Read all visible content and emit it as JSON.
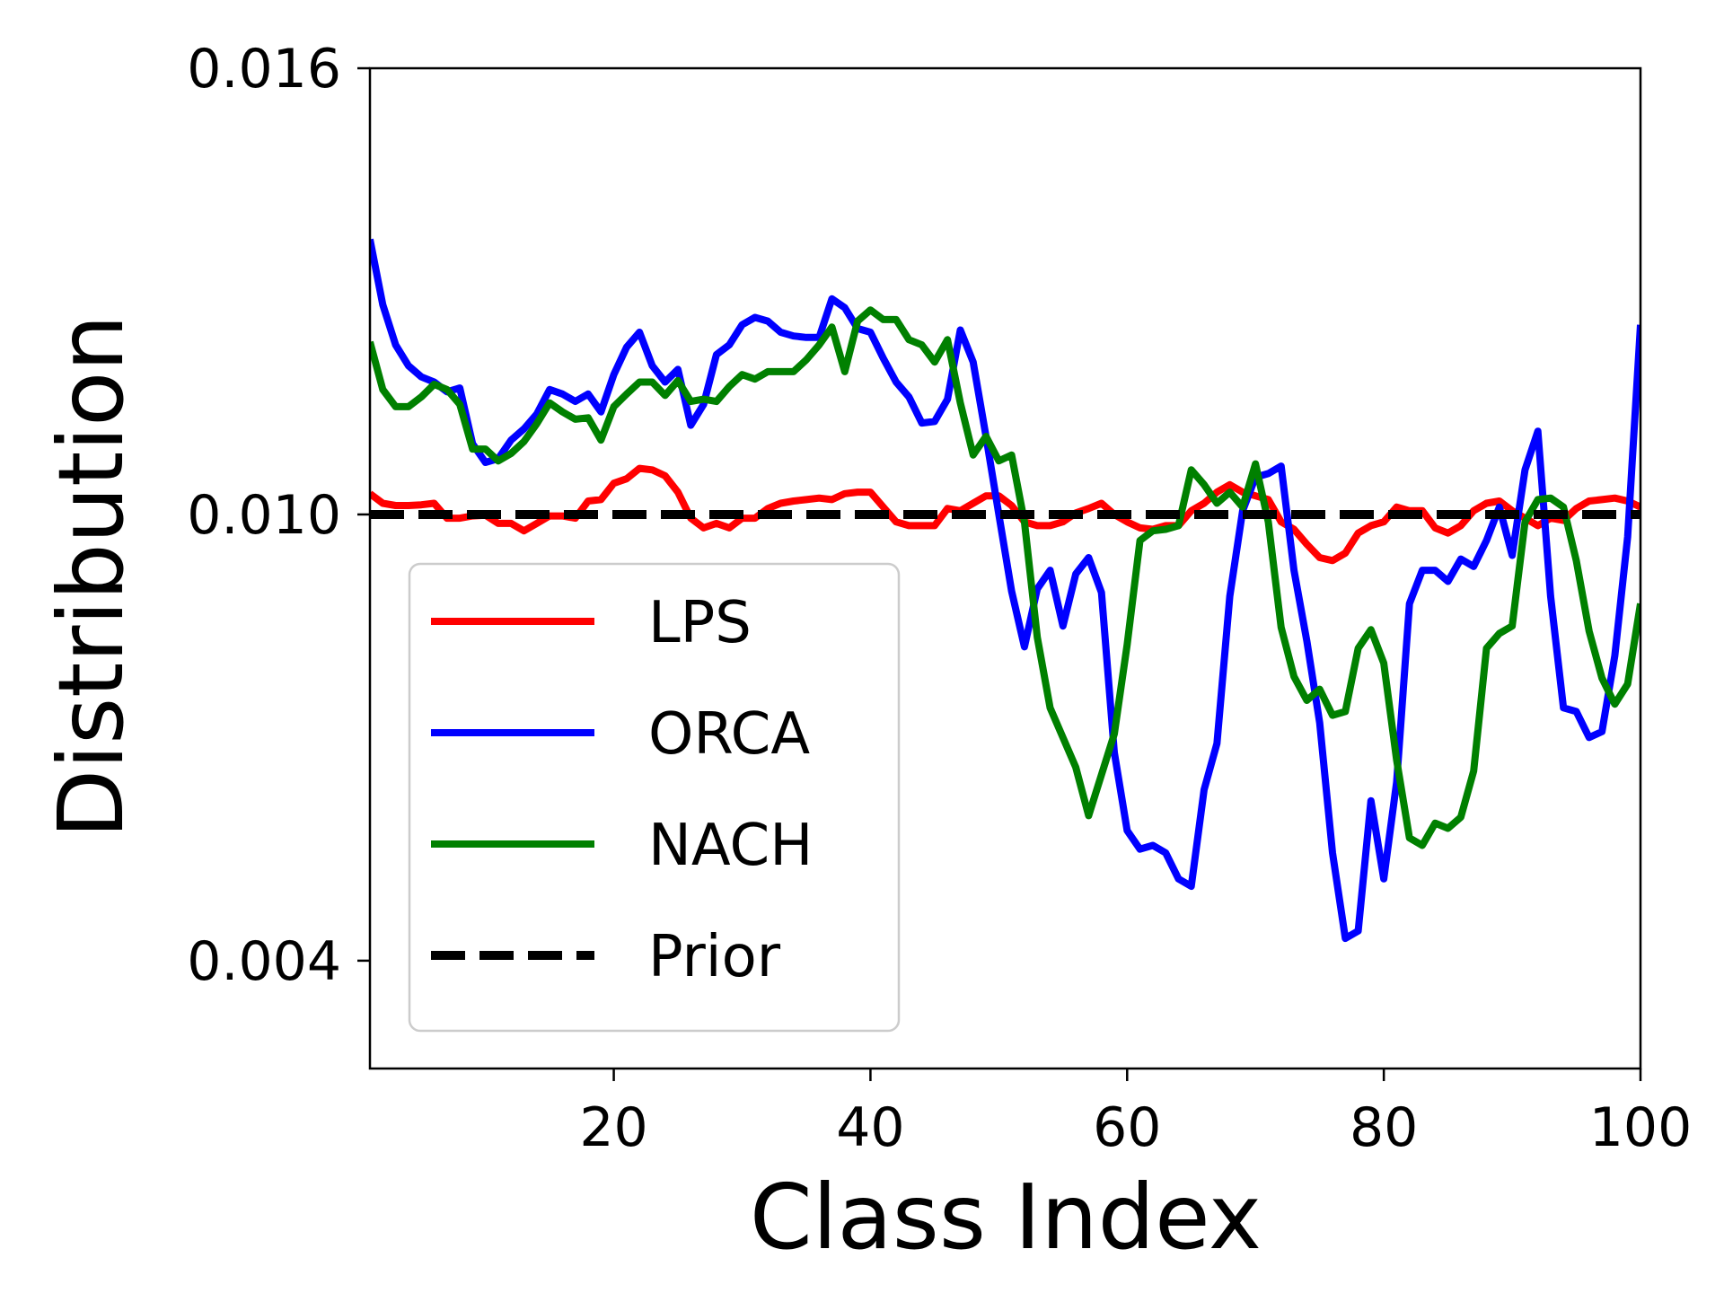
{
  "chart_data": {
    "type": "line",
    "xlabel": "Class Index",
    "ylabel": "Distribution",
    "xlim": [
      1,
      100
    ],
    "ylim": [
      0.00255,
      0.016
    ],
    "xticks": [
      20,
      40,
      60,
      80,
      100
    ],
    "xtick_labels": [
      "20",
      "40",
      "60",
      "80",
      "100"
    ],
    "yticks": [
      0.004,
      0.01,
      0.016
    ],
    "ytick_labels": [
      "0.004",
      "0.010",
      "0.016"
    ],
    "grid": false,
    "legend_position": "lower-left",
    "series": [
      {
        "name": "LPS",
        "color": "#ff0000",
        "style": "solid",
        "x": [
          1,
          2,
          3,
          4,
          5,
          6,
          7,
          8,
          9,
          10,
          11,
          12,
          13,
          14,
          15,
          16,
          17,
          18,
          19,
          20,
          21,
          22,
          23,
          24,
          25,
          26,
          27,
          28,
          29,
          30,
          31,
          32,
          33,
          34,
          35,
          36,
          37,
          38,
          39,
          40,
          41,
          42,
          43,
          44,
          45,
          46,
          47,
          48,
          49,
          50,
          51,
          52,
          53,
          54,
          55,
          56,
          57,
          58,
          59,
          60,
          61,
          62,
          63,
          64,
          65,
          66,
          67,
          68,
          69,
          70,
          71,
          72,
          73,
          74,
          75,
          76,
          77,
          78,
          79,
          80,
          81,
          82,
          83,
          84,
          85,
          86,
          87,
          88,
          89,
          90,
          91,
          92,
          93,
          94,
          95,
          96,
          97,
          98,
          99,
          100
        ],
        "y": [
          0.01028,
          0.01015,
          0.01012,
          0.01012,
          0.01013,
          0.01015,
          0.00995,
          0.00995,
          0.00998,
          0.00999,
          0.00988,
          0.00988,
          0.00978,
          0.00988,
          0.00998,
          0.00998,
          0.00995,
          0.01018,
          0.0102,
          0.01042,
          0.01048,
          0.01062,
          0.0106,
          0.01052,
          0.0103,
          0.00995,
          0.00982,
          0.00988,
          0.00982,
          0.00995,
          0.00995,
          0.01008,
          0.01015,
          0.01018,
          0.0102,
          0.01022,
          0.0102,
          0.01028,
          0.0103,
          0.0103,
          0.0101,
          0.0099,
          0.00985,
          0.00985,
          0.00985,
          0.01008,
          0.01005,
          0.01015,
          0.01025,
          0.01025,
          0.01012,
          0.0099,
          0.00985,
          0.00985,
          0.0099,
          0.01002,
          0.01008,
          0.01015,
          0.01,
          0.0099,
          0.00982,
          0.0098,
          0.00985,
          0.00985,
          0.01005,
          0.01015,
          0.0103,
          0.0104,
          0.0103,
          0.01025,
          0.0102,
          0.0099,
          0.0098,
          0.0096,
          0.00942,
          0.00938,
          0.00948,
          0.00975,
          0.00985,
          0.0099,
          0.0101,
          0.01005,
          0.01005,
          0.00982,
          0.00975,
          0.00985,
          0.01005,
          0.01015,
          0.01018,
          0.01005,
          0.00995,
          0.00985,
          0.00995,
          0.00992,
          0.01008,
          0.01018,
          0.0102,
          0.01022,
          0.01018,
          0.0101
        ]
      },
      {
        "name": "ORCA",
        "color": "#0000ff",
        "style": "solid",
        "x": [
          1,
          2,
          3,
          4,
          5,
          6,
          7,
          8,
          9,
          10,
          11,
          12,
          13,
          14,
          15,
          16,
          17,
          18,
          19,
          20,
          21,
          22,
          23,
          24,
          25,
          26,
          27,
          28,
          29,
          30,
          31,
          32,
          33,
          34,
          35,
          36,
          37,
          38,
          39,
          40,
          41,
          42,
          43,
          44,
          45,
          46,
          47,
          48,
          49,
          50,
          51,
          52,
          53,
          54,
          55,
          56,
          57,
          58,
          59,
          60,
          61,
          62,
          63,
          64,
          65,
          66,
          67,
          68,
          69,
          70,
          71,
          72,
          73,
          74,
          75,
          76,
          77,
          78,
          79,
          80,
          81,
          82,
          83,
          84,
          85,
          86,
          87,
          88,
          89,
          90,
          91,
          92,
          93,
          94,
          95,
          96,
          97,
          98,
          99,
          100
        ],
        "y": [
          0.0137,
          0.01282,
          0.01228,
          0.012,
          0.01185,
          0.01178,
          0.01165,
          0.0117,
          0.01095,
          0.0107,
          0.01075,
          0.011,
          0.01115,
          0.01135,
          0.01168,
          0.01162,
          0.01152,
          0.01162,
          0.01138,
          0.01188,
          0.01225,
          0.01245,
          0.012,
          0.01178,
          0.01195,
          0.0112,
          0.01148,
          0.01215,
          0.01228,
          0.01255,
          0.01265,
          0.0126,
          0.01245,
          0.0124,
          0.01238,
          0.01238,
          0.0129,
          0.01278,
          0.0125,
          0.01245,
          0.0121,
          0.01178,
          0.01158,
          0.01123,
          0.01125,
          0.01155,
          0.01248,
          0.01205,
          0.01105,
          0.01,
          0.00897,
          0.00822,
          0.009,
          0.00925,
          0.0085,
          0.0092,
          0.00942,
          0.00895,
          0.0068,
          0.00575,
          0.0055,
          0.00555,
          0.00545,
          0.0051,
          0.005,
          0.0063,
          0.00692,
          0.0089,
          0.01005,
          0.0105,
          0.01055,
          0.01065,
          0.00925,
          0.0083,
          0.0072,
          0.00545,
          0.0043,
          0.0044,
          0.00615,
          0.0051,
          0.0064,
          0.0088,
          0.00925,
          0.00925,
          0.0091,
          0.0094,
          0.0093,
          0.00965,
          0.0101,
          0.00945,
          0.0106,
          0.01112,
          0.0089,
          0.0074,
          0.00735,
          0.007,
          0.00708,
          0.0081,
          0.0097,
          0.01255
        ]
      },
      {
        "name": "NACH",
        "color": "#008000",
        "style": "solid",
        "x": [
          1,
          2,
          3,
          4,
          5,
          6,
          7,
          8,
          9,
          10,
          11,
          12,
          13,
          14,
          15,
          16,
          17,
          18,
          19,
          20,
          21,
          22,
          23,
          24,
          25,
          26,
          27,
          28,
          29,
          30,
          31,
          32,
          33,
          34,
          35,
          36,
          37,
          38,
          39,
          40,
          41,
          42,
          43,
          44,
          45,
          46,
          47,
          48,
          49,
          50,
          51,
          52,
          53,
          54,
          55,
          56,
          57,
          58,
          59,
          60,
          61,
          62,
          63,
          64,
          65,
          66,
          67,
          68,
          69,
          70,
          71,
          72,
          73,
          74,
          75,
          76,
          77,
          78,
          79,
          80,
          81,
          82,
          83,
          84,
          85,
          86,
          87,
          88,
          89,
          90,
          91,
          92,
          93,
          94,
          95,
          96,
          97,
          98,
          99,
          100
        ],
        "y": [
          0.01232,
          0.01168,
          0.01145,
          0.01145,
          0.01158,
          0.01175,
          0.01168,
          0.01148,
          0.01088,
          0.01088,
          0.01072,
          0.01082,
          0.01098,
          0.01122,
          0.0115,
          0.01138,
          0.01128,
          0.0113,
          0.011,
          0.01145,
          0.01162,
          0.01178,
          0.01178,
          0.0116,
          0.0118,
          0.01152,
          0.01155,
          0.01152,
          0.01172,
          0.01188,
          0.01182,
          0.01192,
          0.01192,
          0.01192,
          0.01208,
          0.01228,
          0.01252,
          0.01192,
          0.0126,
          0.01275,
          0.01262,
          0.01262,
          0.01235,
          0.01228,
          0.01205,
          0.01235,
          0.0115,
          0.0108,
          0.01105,
          0.01072,
          0.0108,
          0.0099,
          0.00835,
          0.0074,
          0.007,
          0.0066,
          0.00595,
          0.0065,
          0.00705,
          0.00825,
          0.00965,
          0.00978,
          0.0098,
          0.00985,
          0.0106,
          0.0104,
          0.01015,
          0.0103,
          0.0101,
          0.01068,
          0.0099,
          0.00848,
          0.00782,
          0.0075,
          0.00765,
          0.0073,
          0.00735,
          0.0082,
          0.00845,
          0.008,
          0.0067,
          0.00565,
          0.00555,
          0.00585,
          0.00578,
          0.00593,
          0.00655,
          0.0082,
          0.0084,
          0.0085,
          0.0099,
          0.0102,
          0.01022,
          0.0101,
          0.00938,
          0.00843,
          0.0078,
          0.00745,
          0.00772,
          0.0088
        ]
      },
      {
        "name": "Prior",
        "color": "#000000",
        "style": "dashed",
        "x": [
          1,
          100
        ],
        "y": [
          0.01,
          0.01
        ]
      }
    ]
  }
}
